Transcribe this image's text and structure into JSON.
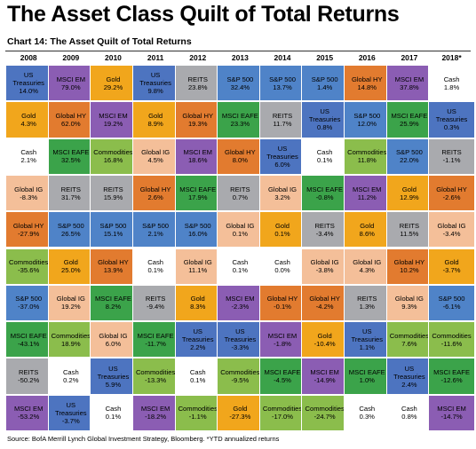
{
  "title": "The Asset Class Quilt of Total Returns",
  "chart_label": "Chart 14: The Asset Quilt of Total Returns",
  "source": "Source: BofA Merrill Lynch Global Investment Strategy, Bloomberg. *YTD annualized returns",
  "colors": {
    "US Treasuries": "#4d74c0",
    "MSCI EM": "#8b5db3",
    "Gold": "#f1a61c",
    "REITS": "#a9aaae",
    "S&P 500": "#4f83c8",
    "Global HY": "#e27b2f",
    "MSCI EAFE": "#3ba34a",
    "Cash": "#ffffff",
    "Global IG": "#f4bf99",
    "Commodities": "#8bbd4c"
  },
  "chart_data": {
    "type": "table",
    "title": "The Asset Quilt of Total Returns",
    "years": [
      "2008",
      "2009",
      "2010",
      "2011",
      "2012",
      "2013",
      "2014",
      "2015",
      "2016",
      "2017",
      "2018*"
    ],
    "columns": [
      [
        {
          "asset": "US Treasuries",
          "value": "14.0%"
        },
        {
          "asset": "Gold",
          "value": "4.3%"
        },
        {
          "asset": "Cash",
          "value": "2.1%"
        },
        {
          "asset": "Global IG",
          "value": "-8.3%"
        },
        {
          "asset": "Global HY",
          "value": "-27.9%"
        },
        {
          "asset": "Commodities",
          "value": "-35.6%"
        },
        {
          "asset": "S&P 500",
          "value": "-37.0%"
        },
        {
          "asset": "MSCI EAFE",
          "value": "-43.1%"
        },
        {
          "asset": "REITS",
          "value": "-50.2%"
        },
        {
          "asset": "MSCI EM",
          "value": "-53.2%"
        }
      ],
      [
        {
          "asset": "MSCI EM",
          "value": "79.0%"
        },
        {
          "asset": "Global HY",
          "value": "62.0%"
        },
        {
          "asset": "MSCI EAFE",
          "value": "32.5%"
        },
        {
          "asset": "REITS",
          "value": "31.7%"
        },
        {
          "asset": "S&P 500",
          "value": "26.5%"
        },
        {
          "asset": "Gold",
          "value": "25.0%"
        },
        {
          "asset": "Global IG",
          "value": "19.2%"
        },
        {
          "asset": "Commodities",
          "value": "18.9%"
        },
        {
          "asset": "Cash",
          "value": "0.2%"
        },
        {
          "asset": "US Treasuries",
          "value": "-3.7%"
        }
      ],
      [
        {
          "asset": "Gold",
          "value": "29.2%"
        },
        {
          "asset": "MSCI EM",
          "value": "19.2%"
        },
        {
          "asset": "Commodities",
          "value": "16.8%"
        },
        {
          "asset": "REITS",
          "value": "15.9%"
        },
        {
          "asset": "S&P 500",
          "value": "15.1%"
        },
        {
          "asset": "Global HY",
          "value": "13.9%"
        },
        {
          "asset": "MSCI EAFE",
          "value": "8.2%"
        },
        {
          "asset": "Global IG",
          "value": "6.0%"
        },
        {
          "asset": "US Treasuries",
          "value": "5.9%"
        },
        {
          "asset": "Cash",
          "value": "0.1%"
        }
      ],
      [
        {
          "asset": "US Treasuries",
          "value": "9.8%"
        },
        {
          "asset": "Gold",
          "value": "8.9%"
        },
        {
          "asset": "Global IG",
          "value": "4.5%"
        },
        {
          "asset": "Global HY",
          "value": "2.6%"
        },
        {
          "asset": "S&P 500",
          "value": "2.1%"
        },
        {
          "asset": "Cash",
          "value": "0.1%"
        },
        {
          "asset": "REITS",
          "value": "-9.4%"
        },
        {
          "asset": "MSCI EAFE",
          "value": "-11.7%"
        },
        {
          "asset": "Commodities",
          "value": "-13.3%"
        },
        {
          "asset": "MSCI EM",
          "value": "-18.2%"
        }
      ],
      [
        {
          "asset": "REITS",
          "value": "23.8%"
        },
        {
          "asset": "Global HY",
          "value": "19.3%"
        },
        {
          "asset": "MSCI EM",
          "value": "18.6%"
        },
        {
          "asset": "MSCI EAFE",
          "value": "17.9%"
        },
        {
          "asset": "S&P 500",
          "value": "16.0%"
        },
        {
          "asset": "Global IG",
          "value": "11.1%"
        },
        {
          "asset": "Gold",
          "value": "8.3%"
        },
        {
          "asset": "US Treasuries",
          "value": "2.2%"
        },
        {
          "asset": "Cash",
          "value": "0.1%"
        },
        {
          "asset": "Commodities",
          "value": "-1.1%"
        }
      ],
      [
        {
          "asset": "S&P 500",
          "value": "32.4%"
        },
        {
          "asset": "MSCI EAFE",
          "value": "23.3%"
        },
        {
          "asset": "Global HY",
          "value": "8.0%"
        },
        {
          "asset": "REITS",
          "value": "0.7%"
        },
        {
          "asset": "Global IG",
          "value": "0.1%"
        },
        {
          "asset": "Cash",
          "value": "0.1%"
        },
        {
          "asset": "MSCI EM",
          "value": "-2.3%"
        },
        {
          "asset": "US Treasuries",
          "value": "-3.3%"
        },
        {
          "asset": "Commodities",
          "value": "-9.5%"
        },
        {
          "asset": "Gold",
          "value": "-27.3%"
        }
      ],
      [
        {
          "asset": "S&P 500",
          "value": "13.7%"
        },
        {
          "asset": "REITS",
          "value": "11.7%"
        },
        {
          "asset": "US Treasuries",
          "value": "6.0%"
        },
        {
          "asset": "Global IG",
          "value": "3.2%"
        },
        {
          "asset": "Gold",
          "value": "0.1%"
        },
        {
          "asset": "Cash",
          "value": "0.0%"
        },
        {
          "asset": "Global HY",
          "value": "-0.1%"
        },
        {
          "asset": "MSCI EM",
          "value": "-1.8%"
        },
        {
          "asset": "MSCI EAFE",
          "value": "-4.5%"
        },
        {
          "asset": "Commodities",
          "value": "-17.0%"
        }
      ],
      [
        {
          "asset": "S&P 500",
          "value": "1.4%"
        },
        {
          "asset": "US Treasuries",
          "value": "0.8%"
        },
        {
          "asset": "Cash",
          "value": "0.1%"
        },
        {
          "asset": "MSCI EAFE",
          "value": "-0.8%"
        },
        {
          "asset": "REITS",
          "value": "-3.4%"
        },
        {
          "asset": "Global IG",
          "value": "-3.8%"
        },
        {
          "asset": "Global HY",
          "value": "-4.2%"
        },
        {
          "asset": "Gold",
          "value": "-10.4%"
        },
        {
          "asset": "MSCI EM",
          "value": "-14.9%"
        },
        {
          "asset": "Commodities",
          "value": "-24.7%"
        }
      ],
      [
        {
          "asset": "Global HY",
          "value": "14.8%"
        },
        {
          "asset": "S&P 500",
          "value": "12.0%"
        },
        {
          "asset": "Commodities",
          "value": "11.8%"
        },
        {
          "asset": "MSCI EM",
          "value": "11.2%"
        },
        {
          "asset": "Gold",
          "value": "8.6%"
        },
        {
          "asset": "Global IG",
          "value": "4.3%"
        },
        {
          "asset": "REITS",
          "value": "1.3%"
        },
        {
          "asset": "US Treasuries",
          "value": "1.1%"
        },
        {
          "asset": "MSCI EAFE",
          "value": "1.0%"
        },
        {
          "asset": "Cash",
          "value": "0.3%"
        }
      ],
      [
        {
          "asset": "MSCI EM",
          "value": "37.8%"
        },
        {
          "asset": "MSCI EAFE",
          "value": "25.9%"
        },
        {
          "asset": "S&P 500",
          "value": "22.0%"
        },
        {
          "asset": "Gold",
          "value": "12.9%"
        },
        {
          "asset": "REITS",
          "value": "11.5%"
        },
        {
          "asset": "Global HY",
          "value": "10.2%"
        },
        {
          "asset": "Global IG",
          "value": "9.3%"
        },
        {
          "asset": "Commodities",
          "value": "7.6%"
        },
        {
          "asset": "US Treasuries",
          "value": "2.4%"
        },
        {
          "asset": "Cash",
          "value": "0.8%"
        }
      ],
      [
        {
          "asset": "Cash",
          "value": "1.8%"
        },
        {
          "asset": "US Treasuries",
          "value": "0.3%"
        },
        {
          "asset": "REITS",
          "value": "-1.1%"
        },
        {
          "asset": "Global HY",
          "value": "-2.6%"
        },
        {
          "asset": "Global IG",
          "value": "-3.4%"
        },
        {
          "asset": "Gold",
          "value": "-3.7%"
        },
        {
          "asset": "S&P 500",
          "value": "-6.1%"
        },
        {
          "asset": "Commodities",
          "value": "-11.6%"
        },
        {
          "asset": "MSCI EAFE",
          "value": "-12.6%"
        },
        {
          "asset": "MSCI EM",
          "value": "-14.7%"
        }
      ]
    ]
  }
}
